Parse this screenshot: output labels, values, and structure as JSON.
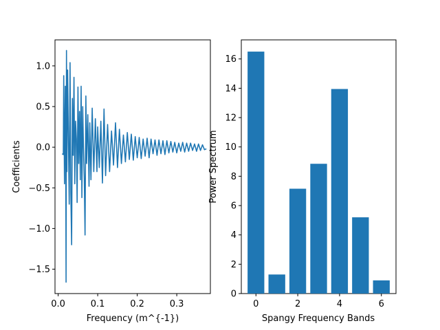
{
  "chart_data": [
    {
      "type": "line",
      "title": "",
      "xlabel": "Frequency (m^{-1})",
      "ylabel": "Coefficients",
      "xlim": [
        -0.008,
        0.385
      ],
      "ylim": [
        -1.8,
        1.32
      ],
      "xticks": [
        0.0,
        0.1,
        0.2,
        0.3
      ],
      "xtick_labels": [
        "0.0",
        "0.1",
        "0.2",
        "0.3"
      ],
      "yticks": [
        -1.5,
        -1.0,
        -0.5,
        0.0,
        0.5,
        1.0
      ],
      "ytick_labels": [
        "−1.5",
        "−1.0",
        "−0.5",
        "0.0",
        "0.5",
        "1.0"
      ],
      "grid": false,
      "color": "#1f77b4",
      "series": [
        {
          "x": [
            0.01,
            0.013,
            0.014,
            0.016,
            0.018,
            0.019,
            0.02,
            0.021,
            0.022,
            0.024,
            0.026,
            0.028,
            0.03,
            0.032,
            0.034,
            0.036,
            0.038,
            0.04,
            0.042,
            0.044,
            0.046,
            0.048,
            0.05,
            0.052,
            0.054,
            0.056,
            0.058,
            0.06,
            0.062,
            0.064,
            0.066,
            0.068,
            0.07,
            0.072,
            0.075,
            0.078,
            0.08,
            0.083,
            0.086,
            0.09,
            0.094,
            0.098,
            0.1,
            0.104,
            0.108,
            0.112,
            0.116,
            0.12,
            0.125,
            0.13,
            0.135,
            0.14,
            0.145,
            0.15,
            0.155,
            0.16,
            0.165,
            0.17,
            0.175,
            0.18,
            0.185,
            0.19,
            0.195,
            0.2,
            0.205,
            0.21,
            0.215,
            0.22,
            0.225,
            0.23,
            0.235,
            0.24,
            0.245,
            0.25,
            0.255,
            0.26,
            0.265,
            0.27,
            0.275,
            0.28,
            0.285,
            0.29,
            0.295,
            0.3,
            0.305,
            0.31,
            0.315,
            0.32,
            0.325,
            0.33,
            0.335,
            0.34,
            0.345,
            0.35,
            0.355,
            0.36,
            0.365,
            0.37,
            0.375
          ],
          "y": [
            -0.08,
            -0.09,
            0.88,
            -0.45,
            0.75,
            0.25,
            -1.66,
            1.19,
            -0.3,
            0.95,
            0.05,
            -0.7,
            1.04,
            -0.55,
            -1.2,
            0.6,
            -0.1,
            0.86,
            -0.45,
            0.32,
            0.1,
            -0.68,
            0.74,
            -0.2,
            0.44,
            -0.4,
            0.75,
            -0.62,
            0.5,
            0.0,
            -0.4,
            -1.08,
            0.63,
            -0.2,
            0.4,
            -0.48,
            0.3,
            -0.4,
            0.48,
            -0.3,
            0.35,
            -0.3,
            0.25,
            -0.25,
            0.32,
            -0.44,
            0.47,
            -0.35,
            0.28,
            -0.3,
            0.2,
            -0.22,
            0.3,
            -0.25,
            0.22,
            -0.2,
            0.15,
            -0.18,
            0.18,
            -0.15,
            0.16,
            -0.16,
            0.13,
            -0.13,
            0.12,
            -0.14,
            0.1,
            -0.11,
            0.11,
            -0.13,
            0.1,
            -0.08,
            0.09,
            -0.1,
            0.09,
            -0.08,
            0.08,
            -0.09,
            0.08,
            -0.07,
            0.07,
            -0.06,
            0.06,
            -0.07,
            0.05,
            -0.05,
            0.06,
            -0.06,
            0.05,
            -0.05,
            0.05,
            -0.04,
            0.04,
            -0.05,
            0.04,
            -0.04,
            0.03,
            -0.03,
            -0.02
          ]
        }
      ]
    },
    {
      "type": "bar",
      "title": "",
      "xlabel": "Spangy Frequency Bands",
      "ylabel": "Power Spectrum",
      "xlim": [
        -0.7,
        6.7
      ],
      "ylim": [
        0,
        17.3
      ],
      "xticks": [
        0,
        2,
        4,
        6
      ],
      "xtick_labels": [
        "0",
        "2",
        "4",
        "6"
      ],
      "yticks": [
        0,
        2,
        4,
        6,
        8,
        10,
        12,
        14,
        16
      ],
      "ytick_labels": [
        "0",
        "2",
        "4",
        "6",
        "8",
        "10",
        "12",
        "14",
        "16"
      ],
      "grid": false,
      "color": "#1f77b4",
      "categories": [
        0,
        1,
        2,
        3,
        4,
        5,
        6
      ],
      "values": [
        16.5,
        1.3,
        7.15,
        8.85,
        13.95,
        5.2,
        0.9
      ]
    }
  ]
}
